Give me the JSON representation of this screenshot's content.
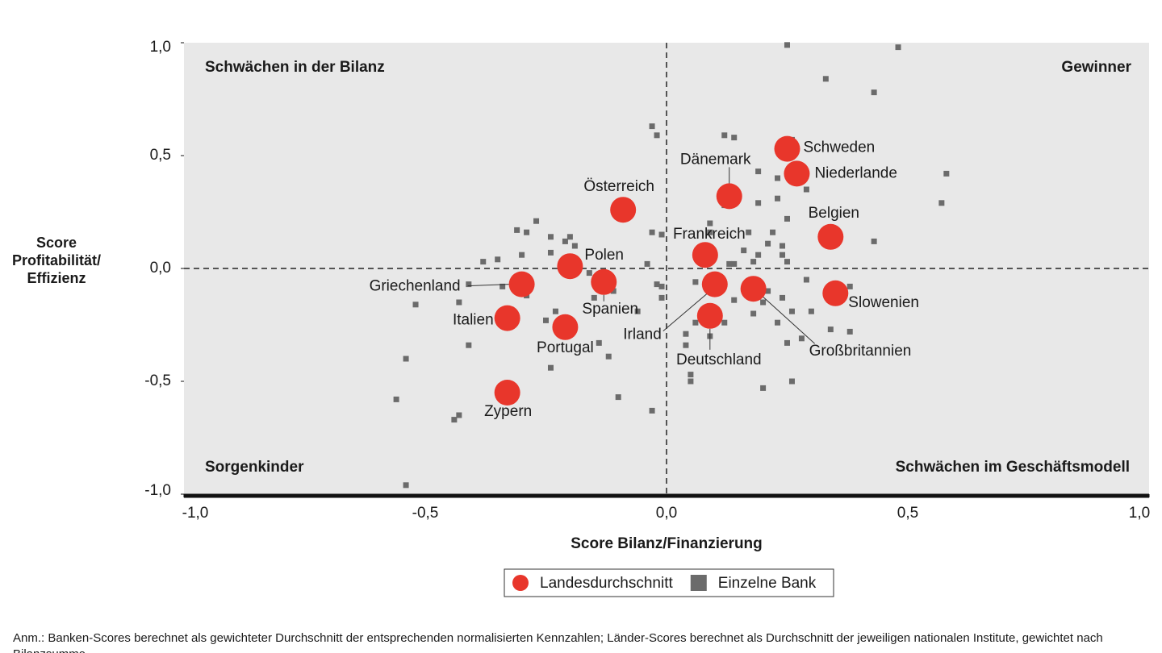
{
  "chart_data": {
    "type": "scatter",
    "xlabel": "Score Bilanz/Finanzierung",
    "ylabel": "Score Profitabilität/ Effizienz",
    "xlim": [
      -1,
      1
    ],
    "ylim": [
      -1,
      1
    ],
    "xticks": [
      {
        "value": -1,
        "label": "-1,0"
      },
      {
        "value": -0.5,
        "label": "-0,5"
      },
      {
        "value": 0,
        "label": "0,0"
      },
      {
        "value": 0.5,
        "label": "0,5"
      },
      {
        "value": 1,
        "label": "1,0"
      }
    ],
    "yticks": [
      {
        "value": -1,
        "label": "-1,0"
      },
      {
        "value": -0.5,
        "label": "-0,5"
      },
      {
        "value": 0,
        "label": "0,0"
      },
      {
        "value": 0.5,
        "label": "0,5"
      },
      {
        "value": 1,
        "label": "1,0"
      }
    ],
    "annotations": [
      "Schwächen in der Bilanz",
      "Gewinner",
      "Sorgenkinder",
      "Schwächen im Geschäftsmodell"
    ],
    "series": [
      {
        "name": "Landesdurchschnitt",
        "color": "#e8362b",
        "marker": "circle",
        "labels": [
          "Schweden",
          "Niederlande",
          "Dänemark",
          "Österreich",
          "Belgien",
          "Frankreich",
          "Polen",
          "Griechenland",
          "Spanien",
          "Irland",
          "Großbritannien",
          "Slowenien",
          "Italien",
          "Deutschland",
          "Portugal",
          "Zypern"
        ],
        "x": [
          0.25,
          0.27,
          0.13,
          -0.09,
          0.34,
          0.08,
          -0.2,
          -0.3,
          -0.13,
          0.1,
          0.18,
          0.35,
          -0.33,
          0.09,
          -0.21,
          -0.33
        ],
        "y": [
          0.53,
          0.42,
          0.32,
          0.26,
          0.14,
          0.06,
          0.01,
          -0.07,
          -0.06,
          -0.07,
          -0.09,
          -0.11,
          -0.22,
          -0.21,
          -0.26,
          -0.55
        ]
      },
      {
        "name": "Einzelne Bank",
        "color": "#6b6b6b",
        "marker": "square",
        "x": [
          0.25,
          0.48,
          0.33,
          0.43,
          -0.03,
          -0.02,
          0.12,
          0.14,
          0.26,
          0.19,
          0.23,
          0.58,
          0.29,
          0.23,
          0.19,
          0.57,
          0.12,
          0.25,
          -0.27,
          0.09,
          0.09,
          -0.31,
          -0.29,
          -0.03,
          -0.01,
          0.17,
          0.22,
          -0.24,
          -0.21,
          -0.2,
          0.43,
          0.21,
          0.24,
          -0.19,
          0.16,
          0.19,
          0.24,
          -0.3,
          -0.24,
          -0.38,
          -0.35,
          -0.04,
          0.13,
          0.14,
          0.18,
          0.25,
          -0.16,
          -0.14,
          -0.41,
          -0.34,
          -0.02,
          -0.01,
          0.06,
          0.29,
          0.38,
          -0.11,
          -0.29,
          -0.15,
          -0.01,
          0.21,
          0.24,
          0.14,
          0.2,
          -0.43,
          -0.52,
          -0.06,
          -0.23,
          0.18,
          0.26,
          0.3,
          0.12,
          0.06,
          -0.25,
          0.23,
          0.34,
          0.38,
          0.04,
          0.09,
          0.28,
          0.25,
          0.04,
          -0.41,
          -0.14,
          -0.12,
          -0.54,
          -0.24,
          0.05,
          0.05,
          0.26,
          0.2,
          -0.56,
          -0.1,
          -0.03,
          -0.43,
          -0.44,
          -0.54
        ],
        "y": [
          0.99,
          0.98,
          0.84,
          0.78,
          0.63,
          0.59,
          0.59,
          0.58,
          0.57,
          0.43,
          0.4,
          0.42,
          0.35,
          0.31,
          0.29,
          0.29,
          0.28,
          0.22,
          0.21,
          0.2,
          0.16,
          0.17,
          0.16,
          0.16,
          0.15,
          0.16,
          0.16,
          0.14,
          0.12,
          0.14,
          0.12,
          0.11,
          0.1,
          0.1,
          0.08,
          0.06,
          0.06,
          0.06,
          0.07,
          0.03,
          0.04,
          0.02,
          0.02,
          0.02,
          0.03,
          0.03,
          -0.02,
          -0.03,
          -0.07,
          -0.08,
          -0.07,
          -0.08,
          -0.06,
          -0.05,
          -0.08,
          -0.1,
          -0.12,
          -0.13,
          -0.13,
          -0.1,
          -0.13,
          -0.14,
          -0.15,
          -0.15,
          -0.16,
          -0.19,
          -0.19,
          -0.2,
          -0.19,
          -0.19,
          -0.24,
          -0.24,
          -0.23,
          -0.24,
          -0.27,
          -0.28,
          -0.29,
          -0.3,
          -0.31,
          -0.33,
          -0.34,
          -0.34,
          -0.33,
          -0.39,
          -0.4,
          -0.44,
          -0.47,
          -0.5,
          -0.5,
          -0.53,
          -0.58,
          -0.57,
          -0.63,
          -0.65,
          -0.67,
          -0.96
        ]
      }
    ],
    "note": "Anm.: Banken-Scores berechnet als gewichteter Durchschnitt der entsprechenden normalisierten Kennzahlen; Länder-Scores berechnet als Durchschnitt der jeweiligen nationalen Institute, gewichtet nach Bilanzsumme"
  }
}
